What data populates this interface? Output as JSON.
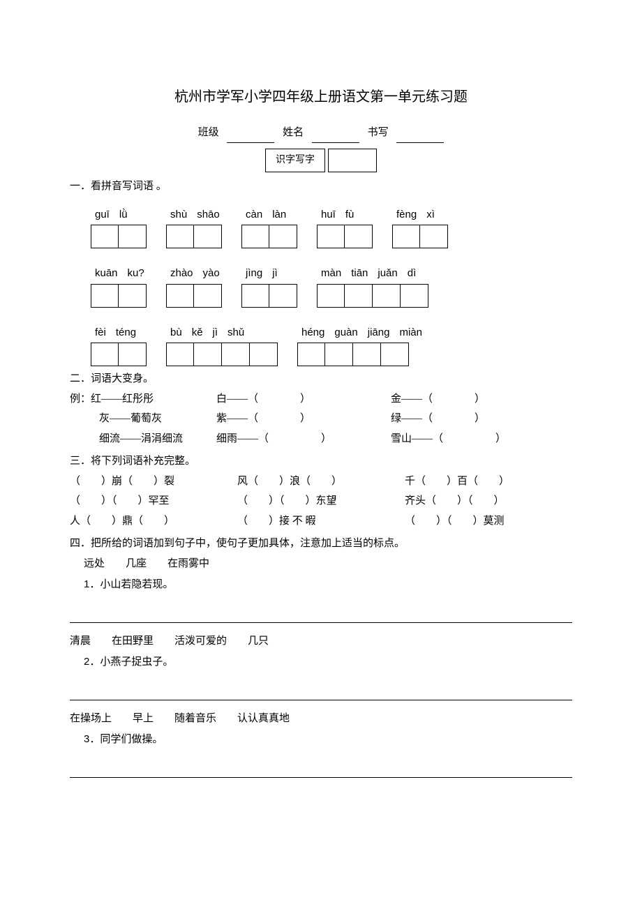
{
  "title": "杭州市学军小学四年级上册语文第一单元练习题",
  "header": {
    "class_label": "班级",
    "name_label": "姓名",
    "writing_label": "书写"
  },
  "section_box": "识字写字",
  "q1": {
    "heading": "一．看拼音写词语 。",
    "rows": [
      [
        {
          "syl": [
            "guī",
            "lǜ"
          ]
        },
        {
          "syl": [
            "shù",
            "shāo"
          ]
        },
        {
          "syl": [
            "càn",
            "làn"
          ]
        },
        {
          "syl": [
            "huī",
            "fù"
          ]
        },
        {
          "syl": [
            "fèng",
            "xì"
          ]
        }
      ],
      [
        {
          "syl": [
            "kuān",
            "ku?"
          ]
        },
        {
          "syl": [
            "zhào",
            "yào"
          ]
        },
        {
          "syl": [
            "jìng",
            "jì"
          ]
        },
        {
          "syl": [
            "màn",
            "tiān",
            "juǎn",
            "dì"
          ],
          "wide": true
        }
      ],
      [
        {
          "syl": [
            "fèi",
            "téng"
          ]
        },
        {
          "syl": [
            "bù",
            "kě",
            "jì",
            "shǔ"
          ],
          "wide": true
        },
        {
          "syl": [
            "héng",
            "guàn",
            "jiāng",
            "miàn"
          ],
          "wide": true
        }
      ]
    ]
  },
  "q2": {
    "heading": "二．词语大变身。",
    "lines": [
      {
        "left": "例：红——红彤彤",
        "mid": "白——（　　　　）",
        "right": "金——（　　　　）",
        "leftpad": 0
      },
      {
        "left": "灰——葡萄灰",
        "mid": "紫——（　　　　）",
        "right": "绿——（　　　　）",
        "leftpad": 42
      },
      {
        "left": "细流——涓涓细流",
        "mid": "细雨——（　　　　　）",
        "right": "雪山——（　　　　　）",
        "leftpad": 42
      }
    ]
  },
  "q3": {
    "heading": "三．将下列词语补充完整。",
    "lines": [
      [
        "（　　）崩（　　）裂",
        "风（　　）浪（　　）",
        "千（　　）百（　　）"
      ],
      [
        "（　　）（　　）罕至",
        "（　　）（　　）东望",
        "齐头（　　）（　　）"
      ],
      [
        "人（　　）鼎（　　）",
        "（　　）接 不 暇",
        "（　　）（　　）莫测"
      ]
    ]
  },
  "q4": {
    "heading": "四．把所给的词语加到句子中，使句子更加具体，注意加上适当的标点。",
    "items": [
      {
        "words": [
          "远处",
          "几座",
          "在雨雾中"
        ],
        "num": "1．",
        "sentence": "小山若隐若现。"
      },
      {
        "words": [
          "清晨",
          "在田野里",
          "活泼可爱的",
          "几只"
        ],
        "num": "2．",
        "sentence": "小燕子捉虫子。"
      },
      {
        "words": [
          "在操场上",
          "早上",
          "随着音乐",
          "认认真真地"
        ],
        "num": "3．",
        "sentence": "同学们做操。"
      }
    ]
  },
  "style": {
    "box_border": "#000000",
    "bg": "#ffffff",
    "title_fontsize": 20,
    "body_fontsize": 15
  }
}
